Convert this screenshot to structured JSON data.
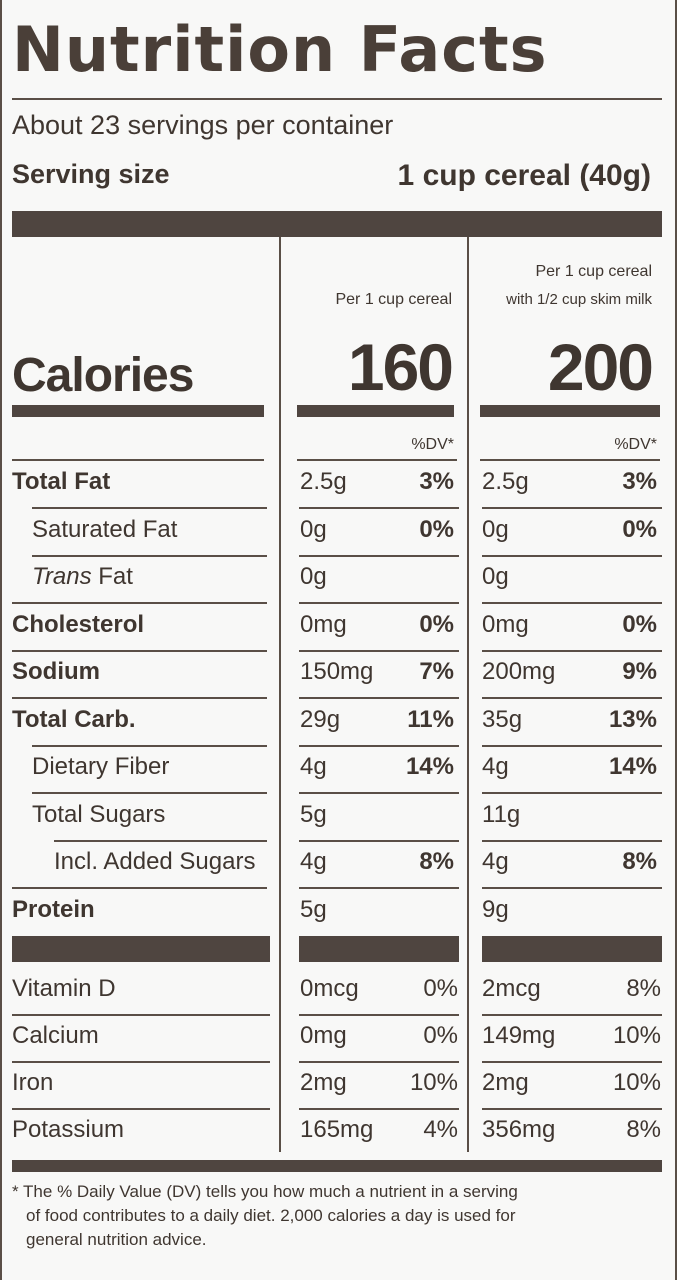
{
  "title": "Nutrition Facts",
  "servings_per_container": "About 23 servings per container",
  "serving_size_label": "Serving size",
  "serving_size_value": "1 cup cereal (40g)",
  "columns": {
    "col1_header": "Per 1 cup cereal",
    "col2_header_line1": "Per 1 cup cereal",
    "col2_header_line2": "with 1/2 cup skim milk"
  },
  "calories": {
    "label": "Calories",
    "col1": "160",
    "col2": "200"
  },
  "dv_header": "%DV*",
  "nutrients": [
    {
      "name": "Total Fat",
      "c1_amt": "2.5g",
      "c1_pct": "3%",
      "c2_amt": "2.5g",
      "c2_pct": "3%"
    },
    {
      "name": "Saturated Fat",
      "c1_amt": "0g",
      "c1_pct": "0%",
      "c2_amt": "0g",
      "c2_pct": "0%"
    },
    {
      "name_italic": "Trans",
      "name_rest": " Fat",
      "c1_amt": "0g",
      "c1_pct": "",
      "c2_amt": "0g",
      "c2_pct": ""
    },
    {
      "name": "Cholesterol",
      "c1_amt": "0mg",
      "c1_pct": "0%",
      "c2_amt": "0mg",
      "c2_pct": "0%"
    },
    {
      "name": "Sodium",
      "c1_amt": "150mg",
      "c1_pct": "7%",
      "c2_amt": "200mg",
      "c2_pct": "9%"
    },
    {
      "name": "Total Carb.",
      "c1_amt": "29g",
      "c1_pct": "11%",
      "c2_amt": "35g",
      "c2_pct": "13%"
    },
    {
      "name": "Dietary Fiber",
      "c1_amt": "4g",
      "c1_pct": "14%",
      "c2_amt": "4g",
      "c2_pct": "14%"
    },
    {
      "name": "Total Sugars",
      "c1_amt": "5g",
      "c1_pct": "",
      "c2_amt": "11g",
      "c2_pct": ""
    },
    {
      "name": "Incl. Added Sugars",
      "c1_amt": "4g",
      "c1_pct": "8%",
      "c2_amt": "4g",
      "c2_pct": "8%"
    },
    {
      "name": "Protein",
      "c1_amt": "5g",
      "c1_pct": "",
      "c2_amt": "9g",
      "c2_pct": ""
    }
  ],
  "vitamins": [
    {
      "name": "Vitamin D",
      "c1_amt": "0mcg",
      "c1_pct": "0%",
      "c2_amt": "2mcg",
      "c2_pct": "8%"
    },
    {
      "name": "Calcium",
      "c1_amt": "0mg",
      "c1_pct": "0%",
      "c2_amt": "149mg",
      "c2_pct": "10%"
    },
    {
      "name": "Iron",
      "c1_amt": "2mg",
      "c1_pct": "10%",
      "c2_amt": "2mg",
      "c2_pct": "10%"
    },
    {
      "name": "Potassium",
      "c1_amt": "165mg",
      "c1_pct": "4%",
      "c2_amt": "356mg",
      "c2_pct": "8%"
    }
  ],
  "footnote": {
    "star": "*",
    "line1": "The % Daily Value (DV) tells you how much a nutrient in a serving",
    "line2": "of food contributes to a daily diet. 2,000 calories a day is used for",
    "line3": "general nutrition advice."
  }
}
